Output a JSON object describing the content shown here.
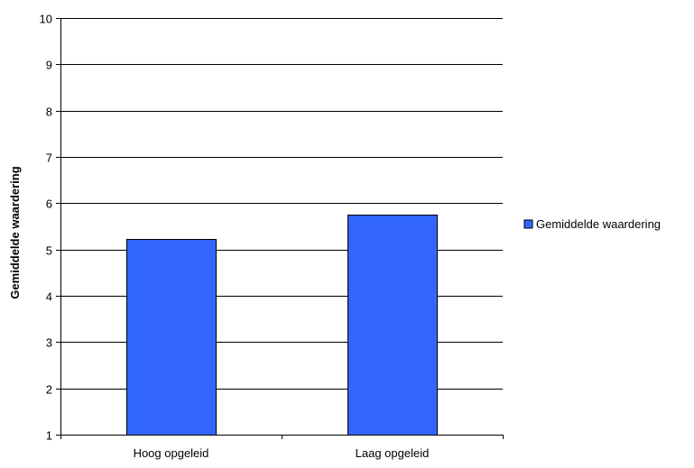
{
  "chart_data": {
    "type": "bar",
    "categories": [
      "Hoog opgeleid",
      "Laag opgeleid"
    ],
    "series": [
      {
        "name": "Gemiddelde waardering",
        "values": [
          5.22,
          5.75
        ]
      }
    ],
    "xlabel": "",
    "ylabel": "Gemiddelde waardering",
    "ylim": [
      1,
      10
    ],
    "yticks": [
      1,
      2,
      3,
      4,
      5,
      6,
      7,
      8,
      9,
      10
    ],
    "grid": true,
    "legend_position": "right",
    "colors": {
      "bar_fill": "#3366FF",
      "bar_stroke": "#000000",
      "grid": "#000000",
      "background": "#FFFFFF"
    }
  }
}
